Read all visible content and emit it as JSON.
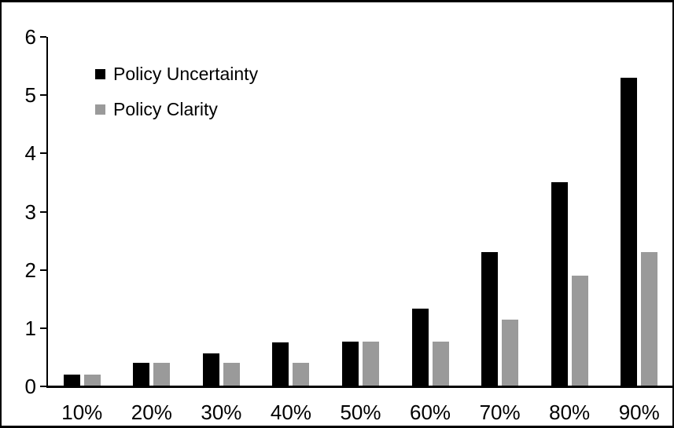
{
  "chart_data": {
    "type": "bar",
    "title": "",
    "xlabel": "",
    "ylabel": "",
    "categories": [
      "10%",
      "20%",
      "30%",
      "40%",
      "50%",
      "60%",
      "70%",
      "80%",
      "90%"
    ],
    "series": [
      {
        "name": "Policy Uncertainty",
        "color": "#000000",
        "values": [
          0.2,
          0.4,
          0.57,
          0.76,
          0.77,
          1.33,
          2.3,
          3.5,
          5.3
        ]
      },
      {
        "name": "Policy Clarity",
        "color": "#9a9a9a",
        "values": [
          0.2,
          0.4,
          0.4,
          0.4,
          0.77,
          0.77,
          1.15,
          1.9,
          2.3
        ]
      }
    ],
    "ylim": [
      0,
      6
    ],
    "yticks": [
      0,
      1,
      2,
      3,
      4,
      5,
      6
    ],
    "grid": false,
    "legend_position": "top-left",
    "frame_color": "#000000",
    "background_color": "#ffffff"
  }
}
